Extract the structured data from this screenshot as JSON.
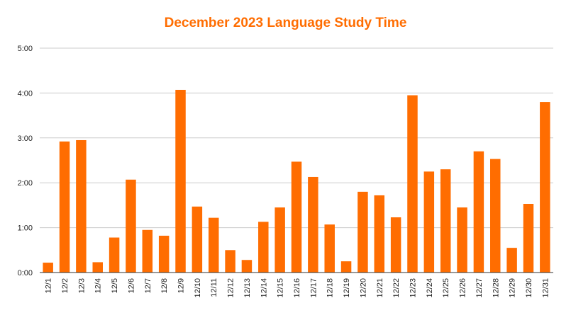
{
  "chart_data": {
    "type": "bar",
    "title": "December 2023 Language Study Time",
    "xlabel": "",
    "ylabel": "",
    "y_unit": "hours",
    "ylim": [
      0,
      5
    ],
    "yticks": [
      0,
      1,
      2,
      3,
      4,
      5
    ],
    "ytick_labels": [
      "0:00",
      "1:00",
      "2:00",
      "3:00",
      "4:00",
      "5:00"
    ],
    "grid": true,
    "legend": "none",
    "categories": [
      "12/1",
      "12/2",
      "12/3",
      "12/4",
      "12/5",
      "12/6",
      "12/7",
      "12/8",
      "12/9",
      "12/10",
      "12/11",
      "12/12",
      "12/13",
      "12/14",
      "12/15",
      "12/16",
      "12/17",
      "12/18",
      "12/19",
      "12/20",
      "12/21",
      "12/22",
      "12/23",
      "12/24",
      "12/25",
      "12/26",
      "12/27",
      "12/28",
      "12/29",
      "12/30",
      "12/31"
    ],
    "values": [
      0.22,
      2.92,
      2.95,
      0.23,
      0.78,
      2.07,
      0.95,
      0.82,
      4.07,
      1.47,
      1.22,
      0.5,
      0.28,
      1.13,
      1.45,
      2.47,
      2.13,
      1.07,
      0.25,
      1.8,
      1.72,
      1.23,
      3.95,
      2.25,
      2.3,
      1.45,
      2.7,
      2.53,
      0.55,
      1.53,
      3.8
    ],
    "colors": {
      "bar": "#ff6d01",
      "title": "#ff6d01",
      "grid": "#cccccc",
      "axis": "#333333"
    }
  }
}
